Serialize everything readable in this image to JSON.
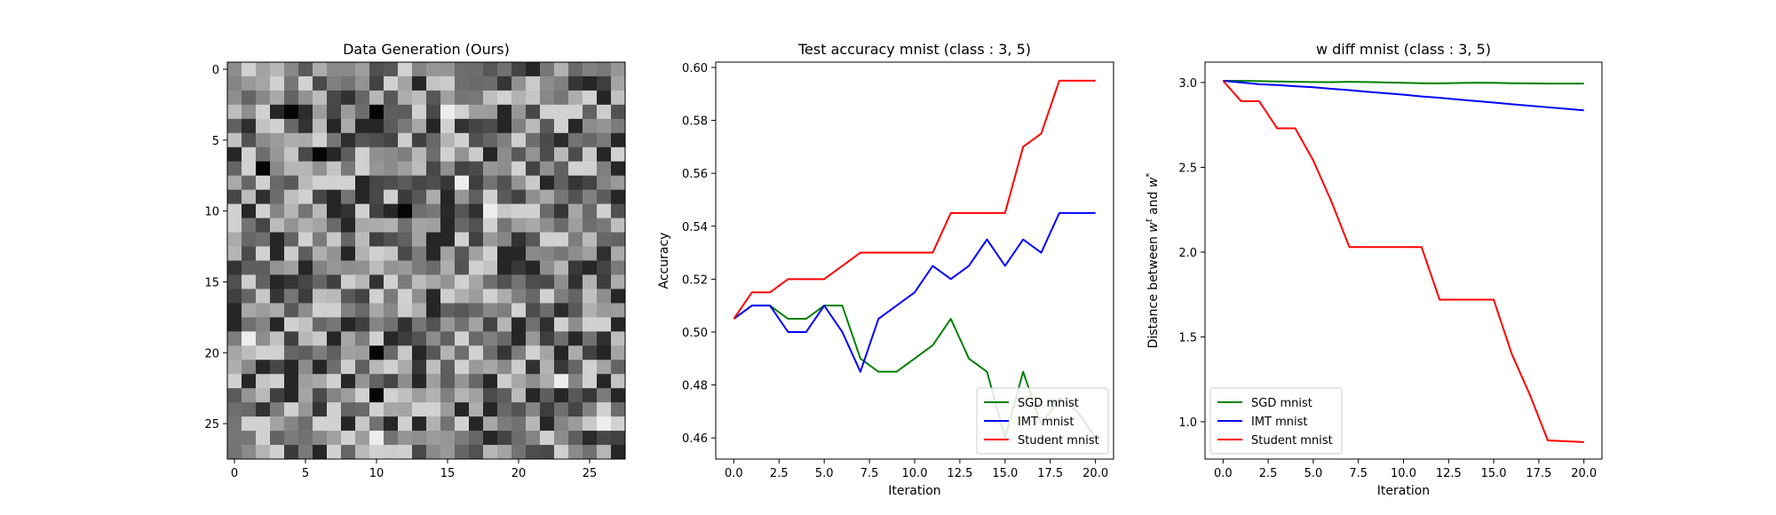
{
  "chart_data": [
    {
      "type": "heatmap",
      "title": "Data Generation (Ours)",
      "xlabel": "",
      "ylabel": "",
      "size": [
        28,
        28
      ],
      "colormap": "gray",
      "xticks": [
        0,
        5,
        10,
        15,
        20,
        25
      ],
      "yticks": [
        0,
        5,
        10,
        15,
        20,
        25
      ],
      "xlim": [
        -0.5,
        27.5
      ],
      "ylim": [
        27.5,
        -0.5
      ],
      "seed": 12345,
      "dark_cells": [
        [
          3,
          10
        ],
        [
          10,
          12
        ],
        [
          6,
          6
        ],
        [
          3,
          4
        ],
        [
          20,
          10
        ],
        [
          23,
          10
        ],
        [
          7,
          2
        ]
      ],
      "bright_cells": [
        [
          8,
          16
        ],
        [
          10,
          18
        ],
        [
          26,
          10
        ],
        [
          19,
          1
        ],
        [
          22,
          23
        ],
        [
          25,
          26
        ],
        [
          3,
          15
        ]
      ]
    },
    {
      "type": "line",
      "title": "Test accuracy mnist (class : 3, 5)",
      "xlabel": "Iteration",
      "ylabel": "Accuracy",
      "xlim": [
        -1,
        21
      ],
      "ylim": [
        0.452,
        0.602
      ],
      "xticks": [
        0.0,
        2.5,
        5.0,
        7.5,
        10.0,
        12.5,
        15.0,
        17.5,
        20.0
      ],
      "yticks": [
        0.46,
        0.48,
        0.5,
        0.52,
        0.54,
        0.56,
        0.58,
        0.6
      ],
      "tick_decimals": {
        "x": 1,
        "y": 2
      },
      "legend": "lower right",
      "x": [
        0,
        1,
        2,
        3,
        4,
        5,
        6,
        7,
        8,
        9,
        10,
        11,
        12,
        13,
        14,
        15,
        16,
        17,
        18,
        19,
        20
      ],
      "series": [
        {
          "name": "SGD mnist",
          "color": "#008000",
          "values": [
            0.505,
            0.51,
            0.51,
            0.505,
            0.505,
            0.51,
            0.51,
            0.49,
            0.485,
            0.485,
            0.49,
            0.495,
            0.505,
            0.49,
            0.485,
            0.46,
            0.485,
            0.465,
            0.475,
            0.47,
            0.46
          ]
        },
        {
          "name": "IMT mnist",
          "color": "#0000ff",
          "values": [
            0.505,
            0.51,
            0.51,
            0.5,
            0.5,
            0.51,
            0.5,
            0.485,
            0.505,
            0.51,
            0.515,
            0.525,
            0.52,
            0.525,
            0.535,
            0.525,
            0.535,
            0.53,
            0.545,
            0.545,
            0.545
          ]
        },
        {
          "name": "Student mnist",
          "color": "#ff0000",
          "values": [
            0.505,
            0.515,
            0.515,
            0.52,
            0.52,
            0.52,
            0.525,
            0.53,
            0.53,
            0.53,
            0.53,
            0.53,
            0.545,
            0.545,
            0.545,
            0.545,
            0.57,
            0.575,
            0.595,
            0.595,
            0.595
          ]
        }
      ]
    },
    {
      "type": "line",
      "title": "w diff mnist (class : 3, 5)",
      "xlabel": "Iteration",
      "ylabel": "Distance between w^t and w^*",
      "xlim": [
        -1,
        21
      ],
      "ylim": [
        0.78,
        3.12
      ],
      "xticks": [
        0.0,
        2.5,
        5.0,
        7.5,
        10.0,
        12.5,
        15.0,
        17.5,
        20.0
      ],
      "yticks": [
        1.0,
        1.5,
        2.0,
        2.5,
        3.0
      ],
      "tick_decimals": {
        "x": 1,
        "y": 1
      },
      "legend": "lower left",
      "x": [
        0,
        1,
        2,
        3,
        4,
        5,
        6,
        7,
        8,
        9,
        10,
        11,
        12,
        13,
        14,
        15,
        16,
        17,
        18,
        19,
        20
      ],
      "series": [
        {
          "name": "SGD mnist",
          "color": "#008000",
          "values": [
            3.01,
            3.01,
            3.008,
            3.006,
            3.004,
            3.003,
            3.002,
            3.004,
            3.003,
            3.0,
            2.998,
            2.996,
            2.995,
            2.997,
            2.999,
            2.998,
            2.996,
            2.995,
            2.994,
            2.994,
            2.994
          ]
        },
        {
          "name": "IMT mnist",
          "color": "#0000ff",
          "values": [
            3.01,
            3.0,
            2.99,
            2.985,
            2.978,
            2.972,
            2.963,
            2.955,
            2.945,
            2.937,
            2.928,
            2.918,
            2.91,
            2.9,
            2.891,
            2.882,
            2.872,
            2.863,
            2.854,
            2.845,
            2.836
          ]
        },
        {
          "name": "Student mnist",
          "color": "#ff0000",
          "values": [
            3.01,
            2.89,
            2.89,
            2.73,
            2.73,
            2.54,
            2.3,
            2.03,
            2.03,
            2.03,
            2.03,
            2.03,
            1.72,
            1.72,
            1.72,
            1.72,
            1.4,
            1.16,
            0.89,
            0.885,
            0.88
          ]
        }
      ]
    }
  ]
}
